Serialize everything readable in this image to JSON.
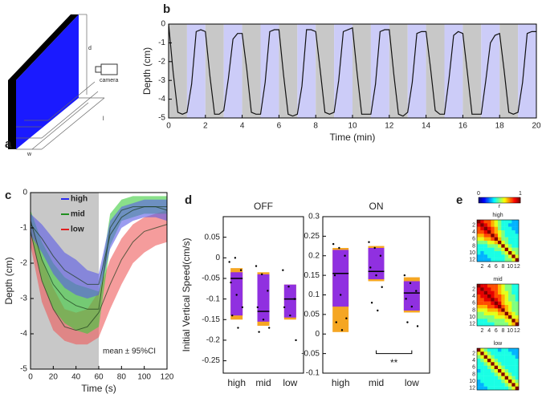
{
  "chart_data": [
    {
      "type": "diagram",
      "panel": "a",
      "labels": [
        "d",
        "l",
        "w",
        "camera"
      ]
    },
    {
      "type": "line",
      "panel": "b",
      "xlabel": "Time (min)",
      "ylabel": "Depth (cm)",
      "xlim": [
        0,
        20
      ],
      "ylim": [
        -5,
        0
      ],
      "xticks": [
        0,
        2,
        4,
        6,
        8,
        10,
        12,
        14,
        16,
        18,
        20
      ],
      "yticks": [
        0,
        -1,
        -2,
        -3,
        -4,
        -5
      ],
      "color": "#111111",
      "bands": {
        "edges": [
          0,
          1,
          2,
          3,
          4,
          5,
          6,
          7,
          8,
          9,
          10,
          11,
          12,
          13,
          14,
          15,
          16,
          17,
          18,
          19,
          20
        ],
        "colors": [
          "#c8c8c8",
          "#ccccf8"
        ]
      },
      "x": [
        0,
        0.25,
        0.5,
        0.75,
        1,
        1.25,
        1.5,
        1.75,
        2,
        2.25,
        2.5,
        2.75,
        3,
        3.25,
        3.5,
        3.75,
        4,
        4.25,
        4.5,
        4.75,
        5,
        5.25,
        5.5,
        5.75,
        6,
        6.25,
        6.5,
        6.75,
        7,
        7.25,
        7.5,
        7.75,
        8,
        8.25,
        8.5,
        8.75,
        9,
        9.25,
        9.5,
        9.75,
        10,
        10.25,
        10.5,
        10.75,
        11,
        11.25,
        11.5,
        11.75,
        12,
        12.25,
        12.5,
        12.75,
        13,
        13.25,
        13.5,
        13.75,
        14,
        14.25,
        14.5,
        14.75,
        15,
        15.25,
        15.5,
        15.75,
        16,
        16.25,
        16.5,
        16.75,
        17,
        17.25,
        17.5,
        17.75,
        18,
        18.25,
        18.5,
        18.75,
        19,
        19.25,
        19.5,
        19.75,
        20
      ],
      "values": [
        0,
        -2.6,
        -4.7,
        -4.8,
        -4.7,
        -3.2,
        -0.4,
        -0.3,
        -0.4,
        -2.8,
        -4.8,
        -4.8,
        -4.6,
        -2.9,
        -0.8,
        -0.5,
        -0.5,
        -2.4,
        -4.7,
        -4.8,
        -4.8,
        -3.1,
        -0.4,
        -0.3,
        -0.3,
        -2.7,
        -4.8,
        -4.9,
        -4.8,
        -3.3,
        -0.3,
        -0.3,
        -0.4,
        -2.5,
        -4.7,
        -4.8,
        -4.7,
        -3.0,
        -0.4,
        -0.3,
        -0.2,
        -2.6,
        -4.8,
        -4.8,
        -4.8,
        -3.2,
        -0.4,
        -0.3,
        -0.3,
        -2.7,
        -4.8,
        -4.9,
        -4.7,
        -3.1,
        -0.5,
        -0.4,
        -0.4,
        -2.4,
        -4.6,
        -4.8,
        -4.8,
        -2.9,
        -0.6,
        -0.4,
        -0.5,
        -2.6,
        -4.8,
        -4.8,
        -4.8,
        -3.0,
        -1.0,
        -0.6,
        -0.5,
        -2.5,
        -4.7,
        -4.8,
        -4.7,
        -3.1,
        -0.5,
        -0.4,
        -0.4
      ]
    },
    {
      "type": "band-line",
      "panel": "c",
      "xlabel": "Time (s)",
      "ylabel": "Depth (cm)",
      "xlim": [
        0,
        120
      ],
      "ylim": [
        -5,
        0
      ],
      "xticks": [
        0,
        20,
        40,
        60,
        80,
        100,
        120
      ],
      "yticks": [
        0,
        -1,
        -2,
        -3,
        -4,
        -5
      ],
      "shade": {
        "range": [
          0,
          60
        ],
        "color": "#c8c8c8"
      },
      "annotation": "mean ± 95%CI",
      "x": [
        0,
        10,
        20,
        30,
        40,
        50,
        60,
        70,
        80,
        90,
        100,
        110,
        120
      ],
      "series": [
        {
          "name": "high",
          "color": "#2a2af0",
          "band_color": "#5a5ae6",
          "values": [
            -0.9,
            -1.3,
            -1.8,
            -2.2,
            -2.4,
            -2.6,
            -2.6,
            -1.2,
            -0.7,
            -0.5,
            -0.4,
            -0.4,
            -0.5
          ],
          "lower": [
            -1.2,
            -1.7,
            -2.3,
            -2.7,
            -2.9,
            -3.0,
            -2.9,
            -1.6,
            -1.0,
            -0.8,
            -0.7,
            -0.7,
            -0.8
          ],
          "upper": [
            -0.6,
            -0.9,
            -1.3,
            -1.7,
            -1.9,
            -2.2,
            -2.3,
            -0.8,
            -0.4,
            -0.3,
            -0.2,
            -0.2,
            -0.2
          ]
        },
        {
          "name": "mid",
          "color": "#1f8f1f",
          "band_color": "#3ccc3c",
          "values": [
            -0.8,
            -1.9,
            -2.6,
            -3.0,
            -3.2,
            -3.3,
            -3.3,
            -1.0,
            -0.5,
            -0.4,
            -0.4,
            -0.4,
            -0.4
          ],
          "lower": [
            -1.1,
            -2.5,
            -3.3,
            -3.7,
            -3.9,
            -4.0,
            -3.8,
            -1.5,
            -0.8,
            -0.7,
            -0.6,
            -0.6,
            -0.6
          ],
          "upper": [
            -0.5,
            -1.4,
            -2.0,
            -2.4,
            -2.6,
            -2.7,
            -2.8,
            -0.6,
            -0.2,
            -0.1,
            -0.1,
            -0.1,
            -0.1
          ]
        },
        {
          "name": "low",
          "color": "#e02020",
          "band_color": "#ee5a5a",
          "values": [
            -1.1,
            -2.5,
            -3.3,
            -3.8,
            -3.9,
            -3.8,
            -3.4,
            -2.6,
            -1.9,
            -1.4,
            -1.1,
            -1.0,
            -0.9
          ],
          "lower": [
            -1.5,
            -3.1,
            -3.9,
            -4.2,
            -4.3,
            -4.3,
            -4.1,
            -3.3,
            -2.6,
            -2.0,
            -1.7,
            -1.5,
            -1.4
          ],
          "upper": [
            -0.7,
            -1.9,
            -2.7,
            -3.3,
            -3.4,
            -3.3,
            -2.8,
            -1.9,
            -1.3,
            -0.9,
            -0.7,
            -0.6,
            -0.5
          ]
        }
      ]
    },
    {
      "type": "box",
      "panel": "d",
      "title": "OFF",
      "ylabel": "Initial Vertical Speed(cm/s)",
      "ylim": [
        -0.28,
        0.1
      ],
      "yticks": [
        0.05,
        0,
        -0.05,
        -0.1,
        -0.15,
        -0.2,
        -0.25
      ],
      "categories": [
        "high",
        "mid",
        "low"
      ],
      "box_color": "#9030e0",
      "ci_color": "#f5a623",
      "boxes": [
        {
          "median": -0.05,
          "q1": -0.14,
          "q3": -0.035,
          "ci": [
            -0.15,
            -0.025
          ],
          "points": [
            -0.01,
            0,
            -0.03,
            -0.06,
            -0.09,
            -0.12,
            -0.14,
            -0.17
          ]
        },
        {
          "median": -0.13,
          "q1": -0.155,
          "q3": -0.04,
          "ci": [
            -0.165,
            -0.035
          ],
          "points": [
            -0.02,
            -0.04,
            -0.08,
            -0.12,
            -0.15,
            -0.17,
            -0.18
          ]
        },
        {
          "median": -0.1,
          "q1": -0.145,
          "q3": -0.065,
          "ci": [
            -0.15,
            -0.065
          ],
          "points": [
            -0.03,
            -0.07,
            -0.1,
            -0.12,
            -0.14,
            -0.2
          ]
        }
      ]
    },
    {
      "type": "box",
      "panel": null,
      "title": "ON",
      "ylim": [
        -0.1,
        0.3
      ],
      "yticks": [
        0.3,
        0.25,
        0.2,
        0.15,
        0.1,
        0.05,
        0,
        -0.05,
        -0.1
      ],
      "categories": [
        "high",
        "mid",
        "low"
      ],
      "box_color": "#9030e0",
      "ci_color": "#f5a623",
      "boxes": [
        {
          "median": 0.155,
          "q1": 0.07,
          "q3": 0.215,
          "ci": [
            0.005,
            0.22
          ],
          "points": [
            0.23,
            0.22,
            0.2,
            0.15,
            0.1,
            0.04,
            0.03,
            0.01
          ]
        },
        {
          "median": 0.16,
          "q1": 0.14,
          "q3": 0.22,
          "ci": [
            0.135,
            0.225
          ],
          "points": [
            0.235,
            0.22,
            0.2,
            0.17,
            0.15,
            0.12,
            0.08,
            0.06
          ]
        },
        {
          "median": 0.105,
          "q1": 0.06,
          "q3": 0.135,
          "ci": [
            0.055,
            0.145
          ],
          "points": [
            0.15,
            0.13,
            0.11,
            0.09,
            0.07,
            0.02,
            0.03
          ]
        }
      ],
      "significance": {
        "label": "**",
        "categories": [
          1,
          2
        ],
        "y": -0.05
      }
    },
    {
      "type": "heatmap",
      "panel": "e",
      "title": "high",
      "clim": [
        0,
        1
      ],
      "colorbar_ticks": [
        0,
        1
      ],
      "colorbar_label": "r",
      "xlim": [
        0.5,
        12.5
      ],
      "ylim": [
        0.5,
        12.5
      ],
      "xticks": [
        2,
        4,
        6,
        8,
        10,
        12
      ],
      "yticks": [
        2,
        4,
        6,
        8,
        10,
        12
      ],
      "z": [
        [
          1,
          0.9,
          0.8,
          0.8,
          0.7,
          0.6,
          0.5,
          0.4,
          0.4,
          0.4,
          0.3,
          0.3
        ],
        [
          0.9,
          1,
          0.9,
          0.8,
          0.7,
          0.6,
          0.5,
          0.4,
          0.4,
          0.3,
          0.3,
          0.3
        ],
        [
          0.8,
          0.9,
          1,
          0.9,
          0.8,
          0.7,
          0.5,
          0.4,
          0.4,
          0.4,
          0.3,
          0.3
        ],
        [
          0.8,
          0.8,
          0.9,
          1,
          0.8,
          0.7,
          0.6,
          0.5,
          0.4,
          0.4,
          0.4,
          0.3
        ],
        [
          0.7,
          0.7,
          0.8,
          0.8,
          1,
          0.8,
          0.6,
          0.5,
          0.4,
          0.4,
          0.4,
          0.4
        ],
        [
          0.6,
          0.6,
          0.7,
          0.7,
          0.8,
          1,
          0.7,
          0.5,
          0.5,
          0.4,
          0.4,
          0.4
        ],
        [
          0.5,
          0.5,
          0.5,
          0.6,
          0.6,
          0.7,
          1,
          0.6,
          0.5,
          0.4,
          0.4,
          0.4
        ],
        [
          0.4,
          0.4,
          0.4,
          0.5,
          0.5,
          0.5,
          0.6,
          1,
          0.6,
          0.5,
          0.4,
          0.4
        ],
        [
          0.4,
          0.4,
          0.4,
          0.4,
          0.4,
          0.5,
          0.5,
          0.6,
          1,
          0.6,
          0.5,
          0.5
        ],
        [
          0.4,
          0.3,
          0.4,
          0.4,
          0.4,
          0.4,
          0.4,
          0.5,
          0.6,
          1,
          0.6,
          0.5
        ],
        [
          0.3,
          0.3,
          0.3,
          0.4,
          0.4,
          0.4,
          0.4,
          0.4,
          0.5,
          0.6,
          1,
          0.6
        ],
        [
          0.3,
          0.3,
          0.3,
          0.3,
          0.4,
          0.4,
          0.4,
          0.4,
          0.5,
          0.5,
          0.6,
          1
        ]
      ]
    },
    {
      "type": "heatmap",
      "title": "mid",
      "clim": [
        0,
        1
      ],
      "xlim": [
        0.5,
        12.5
      ],
      "ylim": [
        0.5,
        12.5
      ],
      "xticks": [
        2,
        4,
        6,
        8,
        10,
        12
      ],
      "yticks": [
        2,
        4,
        6,
        8,
        10,
        12
      ],
      "z": [
        [
          1,
          0.9,
          0.9,
          0.8,
          0.8,
          0.8,
          0.7,
          0.6,
          0.5,
          0.5,
          0.4,
          0.4
        ],
        [
          0.9,
          1,
          0.9,
          0.9,
          0.8,
          0.8,
          0.7,
          0.6,
          0.5,
          0.5,
          0.4,
          0.4
        ],
        [
          0.9,
          0.9,
          1,
          0.9,
          0.9,
          0.8,
          0.7,
          0.6,
          0.6,
          0.5,
          0.4,
          0.4
        ],
        [
          0.8,
          0.9,
          0.9,
          1,
          0.9,
          0.8,
          0.8,
          0.7,
          0.6,
          0.5,
          0.5,
          0.4
        ],
        [
          0.8,
          0.8,
          0.9,
          0.9,
          1,
          0.9,
          0.8,
          0.7,
          0.6,
          0.5,
          0.5,
          0.4
        ],
        [
          0.8,
          0.8,
          0.8,
          0.8,
          0.9,
          1,
          0.9,
          0.7,
          0.6,
          0.6,
          0.5,
          0.5
        ],
        [
          0.7,
          0.7,
          0.7,
          0.8,
          0.8,
          0.9,
          1,
          0.8,
          0.7,
          0.6,
          0.5,
          0.5
        ],
        [
          0.6,
          0.6,
          0.6,
          0.7,
          0.7,
          0.7,
          0.8,
          1,
          0.7,
          0.6,
          0.5,
          0.5
        ],
        [
          0.5,
          0.5,
          0.6,
          0.6,
          0.6,
          0.6,
          0.7,
          0.7,
          1,
          0.7,
          0.6,
          0.5
        ],
        [
          0.5,
          0.5,
          0.5,
          0.5,
          0.5,
          0.6,
          0.6,
          0.6,
          0.7,
          1,
          0.6,
          0.6
        ],
        [
          0.4,
          0.4,
          0.4,
          0.5,
          0.5,
          0.5,
          0.5,
          0.5,
          0.6,
          0.6,
          1,
          0.7
        ],
        [
          0.4,
          0.4,
          0.4,
          0.4,
          0.4,
          0.5,
          0.5,
          0.5,
          0.5,
          0.6,
          0.7,
          1
        ]
      ]
    },
    {
      "type": "heatmap",
      "title": "low",
      "clim": [
        0,
        1
      ],
      "xlim": [
        0.5,
        12.5
      ],
      "ylim": [
        0.5,
        12.5
      ],
      "yticks": [
        2,
        4,
        6,
        8,
        10,
        12
      ],
      "z": [
        [
          1,
          0.6,
          0.5,
          0.4,
          0.4,
          0.4,
          0.3,
          0.4,
          0.4,
          0.3,
          0.3,
          0.3
        ],
        [
          0.6,
          1,
          0.6,
          0.5,
          0.4,
          0.4,
          0.4,
          0.4,
          0.4,
          0.4,
          0.3,
          0.3
        ],
        [
          0.5,
          0.6,
          1,
          0.6,
          0.5,
          0.4,
          0.4,
          0.4,
          0.4,
          0.4,
          0.4,
          0.3
        ],
        [
          0.4,
          0.5,
          0.6,
          1,
          0.6,
          0.5,
          0.4,
          0.4,
          0.4,
          0.4,
          0.4,
          0.4
        ],
        [
          0.4,
          0.4,
          0.5,
          0.6,
          1,
          0.6,
          0.5,
          0.4,
          0.4,
          0.4,
          0.4,
          0.4
        ],
        [
          0.4,
          0.4,
          0.4,
          0.5,
          0.6,
          1,
          0.6,
          0.5,
          0.4,
          0.4,
          0.4,
          0.4
        ],
        [
          0.3,
          0.4,
          0.4,
          0.4,
          0.5,
          0.6,
          1,
          0.6,
          0.5,
          0.4,
          0.4,
          0.4
        ],
        [
          0.4,
          0.4,
          0.4,
          0.4,
          0.4,
          0.5,
          0.6,
          1,
          0.6,
          0.5,
          0.4,
          0.4
        ],
        [
          0.4,
          0.4,
          0.4,
          0.4,
          0.4,
          0.4,
          0.5,
          0.6,
          1,
          0.6,
          0.5,
          0.4
        ],
        [
          0.3,
          0.4,
          0.4,
          0.4,
          0.4,
          0.4,
          0.4,
          0.5,
          0.6,
          1,
          0.6,
          0.5
        ],
        [
          0.3,
          0.3,
          0.4,
          0.4,
          0.4,
          0.4,
          0.4,
          0.4,
          0.5,
          0.6,
          1,
          0.6
        ],
        [
          0.3,
          0.3,
          0.3,
          0.4,
          0.4,
          0.4,
          0.4,
          0.4,
          0.4,
          0.5,
          0.6,
          1
        ]
      ]
    }
  ]
}
